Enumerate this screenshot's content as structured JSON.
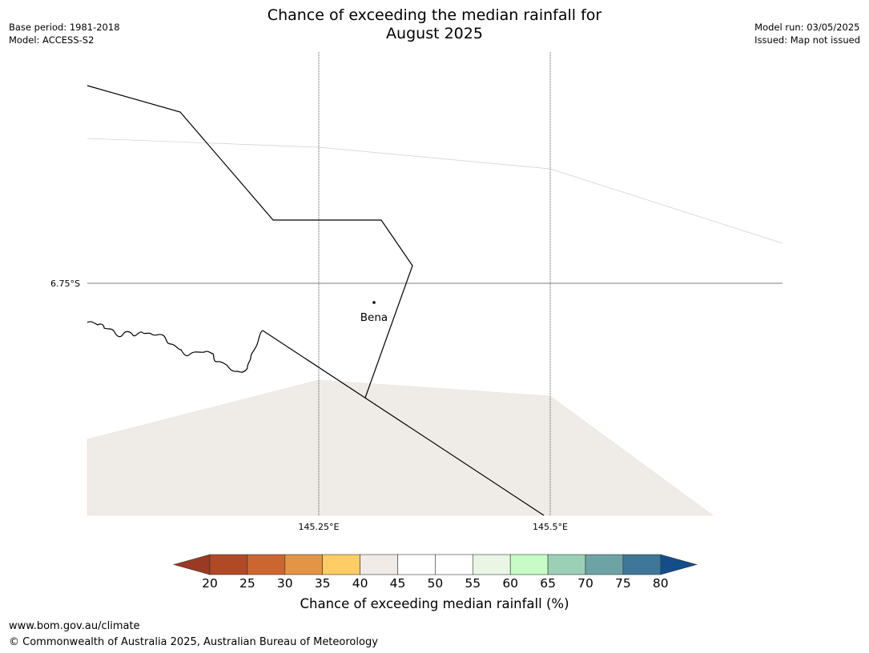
{
  "header": {
    "title_line1": "Chance of exceeding the median rainfall for",
    "title_line2": "August 2025",
    "base_period": "Base period: 1981-2018",
    "model": "Model: ACCESS-S2",
    "model_run": "Model run: 03/05/2025",
    "issued": "Issued: Map not issued"
  },
  "map": {
    "lat_label": "6.75°S",
    "lon_labels": [
      "145.25°E",
      "145.5°E"
    ],
    "place_label": "Bena",
    "shaded_category": "40-45",
    "colors": {
      "shaded": "#efebe6",
      "boundary": "#000000",
      "faint_boundary": "#d0d0d0",
      "gridline": "#555555"
    }
  },
  "colorbar": {
    "label": "Chance of exceeding median rainfall (%)",
    "ticks": [
      "20",
      "25",
      "30",
      "35",
      "40",
      "45",
      "50",
      "55",
      "60",
      "65",
      "70",
      "75",
      "80"
    ],
    "under_color": "#9a3a22",
    "over_color": "#134d8a",
    "colors": [
      "#b04a26",
      "#cc6631",
      "#e39445",
      "#fecd65",
      "#f0ebe6",
      "#ffffff",
      "#ffffff",
      "#e9f6e6",
      "#c7fcc7",
      "#9bd0b6",
      "#6ea3a6",
      "#3e7798"
    ]
  },
  "footer": {
    "url": "www.bom.gov.au/climate",
    "copyright": "© Commonwealth of Australia 2025, Australian Bureau of Meteorology"
  }
}
